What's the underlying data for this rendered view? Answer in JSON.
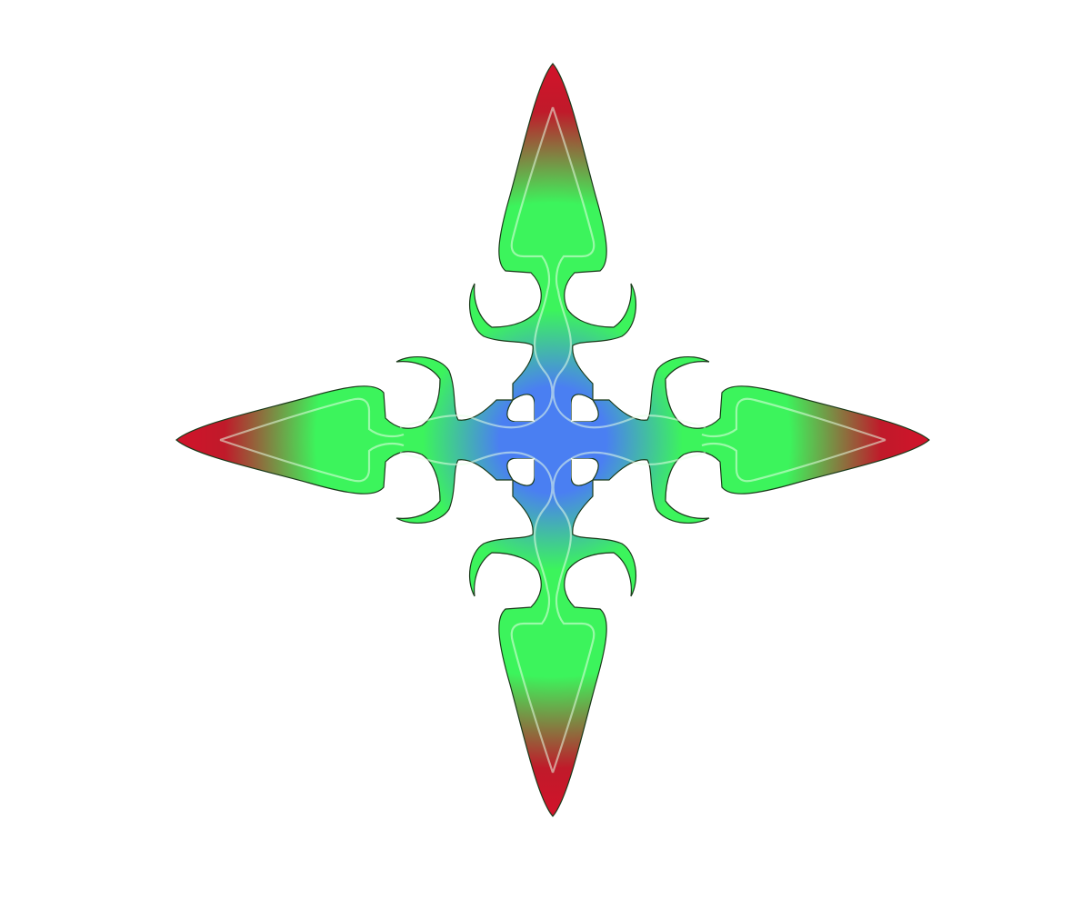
{
  "canvas": {
    "background": "#ffffff"
  },
  "emblem": {
    "name": "four-pointed-tribal-star",
    "colors": {
      "center": "#4a7ff2",
      "middle": "#3cf45c",
      "tips": "#d4122a",
      "outline": "#1a3a1a",
      "inner_highlight": "#e8ffe8"
    }
  }
}
